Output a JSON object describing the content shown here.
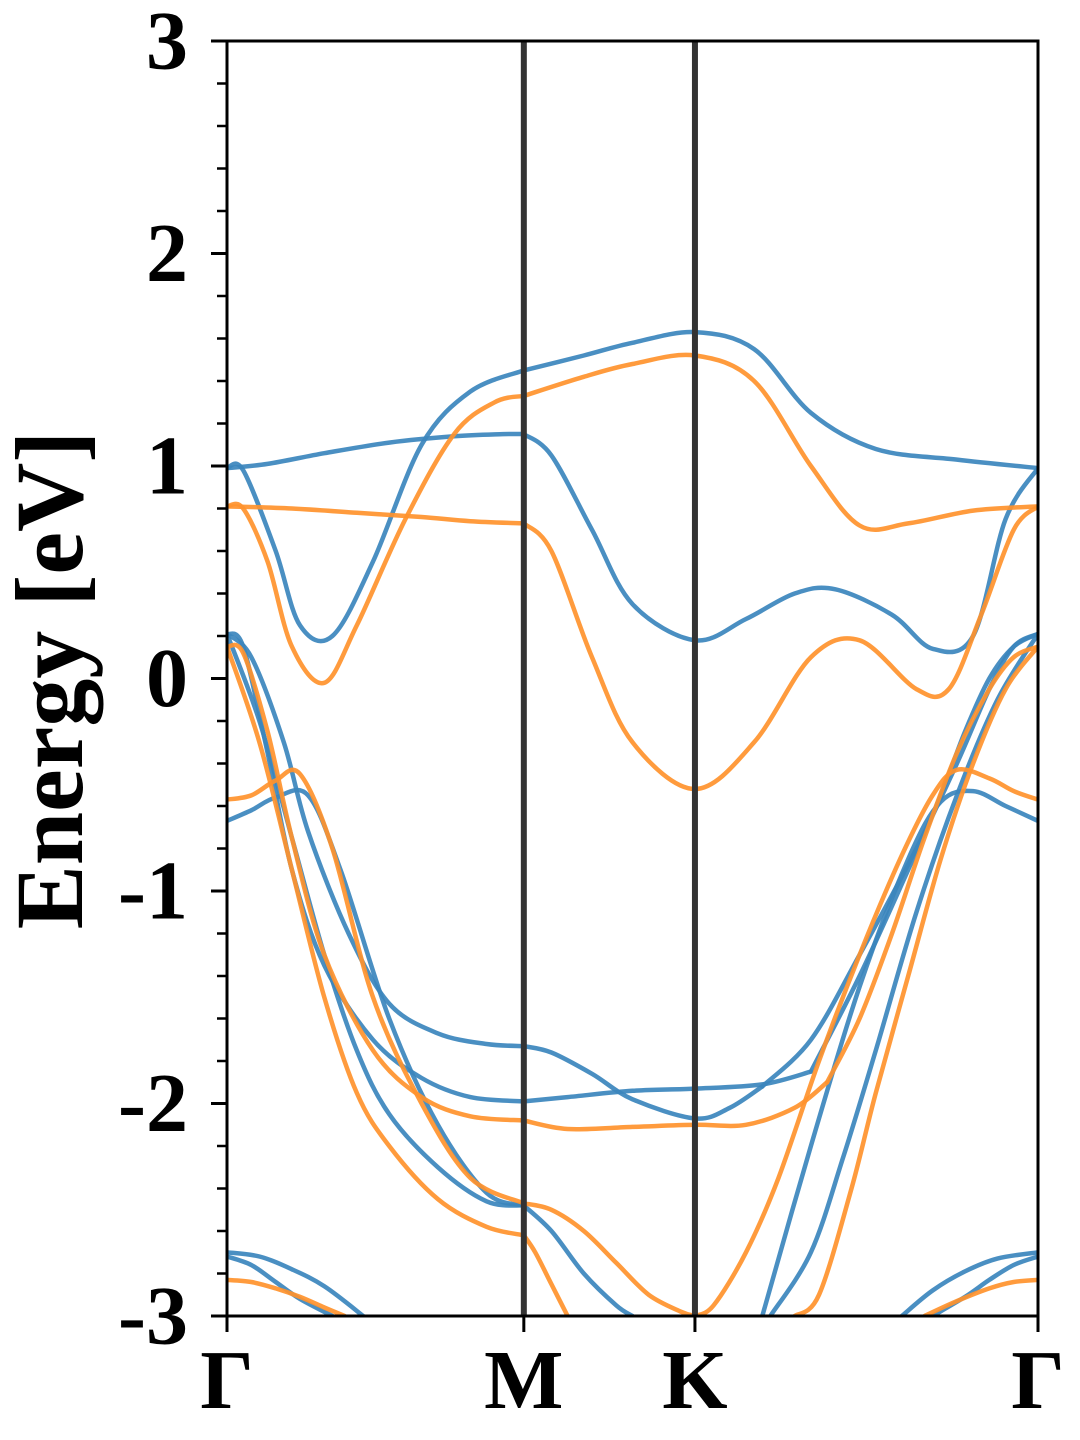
{
  "chart_data": {
    "type": "line",
    "title": "",
    "xlabel": "",
    "ylabel": "Energy [eV]",
    "ylim": [
      -3,
      3
    ],
    "xlim": [
      0,
      1
    ],
    "yticks": [
      {
        "value": 3,
        "label": "3"
      },
      {
        "value": 2,
        "label": "2"
      },
      {
        "value": 1,
        "label": "1"
      },
      {
        "value": 0,
        "label": "0"
      },
      {
        "value": -1,
        "label": "-1"
      },
      {
        "value": -2,
        "label": "-2"
      },
      {
        "value": -3,
        "label": "-3"
      }
    ],
    "kpoints": [
      {
        "label": "Γ",
        "x": 0.0
      },
      {
        "label": "M",
        "x": 0.366
      },
      {
        "label": "K",
        "x": 0.577
      },
      {
        "label": "Γ",
        "x": 1.0
      }
    ],
    "grid": false,
    "legend": "none",
    "colors": {
      "blue": "#3b86bd",
      "orange": "#ff922d",
      "kline": "#333333"
    },
    "series": [
      {
        "color": "blue",
        "x": [
          0,
          0.02,
          0.06,
          0.09,
          0.13,
          0.18,
          0.24,
          0.3,
          0.366
        ],
        "y": [
          0.99,
          0.98,
          0.6,
          0.25,
          0.2,
          0.55,
          1.1,
          1.35,
          1.45
        ]
      },
      {
        "color": "blue",
        "x": [
          0.366,
          0.44,
          0.5,
          0.577,
          0.65,
          0.72,
          0.8,
          0.9,
          1.0
        ],
        "y": [
          1.45,
          1.52,
          1.58,
          1.63,
          1.55,
          1.25,
          1.08,
          1.03,
          0.99
        ]
      },
      {
        "color": "blue",
        "x": [
          0,
          0.05,
          0.12,
          0.2,
          0.28,
          0.34,
          0.366
        ],
        "y": [
          0.99,
          1.01,
          1.06,
          1.11,
          1.14,
          1.15,
          1.15
        ]
      },
      {
        "color": "blue",
        "x": [
          0.366,
          0.4,
          0.45,
          0.5,
          0.577,
          0.64,
          0.7,
          0.75,
          0.82,
          0.87,
          0.92,
          0.96,
          1.0
        ],
        "y": [
          1.15,
          1.05,
          0.7,
          0.35,
          0.18,
          0.28,
          0.4,
          0.42,
          0.3,
          0.14,
          0.2,
          0.75,
          0.99
        ]
      },
      {
        "color": "orange",
        "x": [
          0,
          0.02,
          0.05,
          0.08,
          0.12,
          0.16,
          0.22,
          0.28,
          0.33,
          0.366
        ],
        "y": [
          0.81,
          0.8,
          0.55,
          0.15,
          -0.02,
          0.25,
          0.75,
          1.15,
          1.3,
          1.33
        ]
      },
      {
        "color": "orange",
        "x": [
          0.366,
          0.44,
          0.5,
          0.577,
          0.65,
          0.72,
          0.78,
          0.84,
          0.92,
          1.0
        ],
        "y": [
          1.33,
          1.42,
          1.48,
          1.52,
          1.4,
          1.0,
          0.72,
          0.73,
          0.79,
          0.81
        ]
      },
      {
        "color": "orange",
        "x": [
          0,
          0.08,
          0.16,
          0.24,
          0.3,
          0.366
        ],
        "y": [
          0.81,
          0.8,
          0.78,
          0.76,
          0.74,
          0.73
        ]
      },
      {
        "color": "orange",
        "x": [
          0.366,
          0.4,
          0.45,
          0.5,
          0.577,
          0.65,
          0.72,
          0.78,
          0.85,
          0.89,
          0.93,
          0.97,
          1.0
        ],
        "y": [
          0.73,
          0.6,
          0.1,
          -0.3,
          -0.52,
          -0.3,
          0.1,
          0.18,
          -0.05,
          -0.05,
          0.3,
          0.7,
          0.81
        ]
      },
      {
        "color": "blue",
        "x": [
          0,
          0.02,
          0.05,
          0.08,
          0.12,
          0.18,
          0.24,
          0.3,
          0.366
        ],
        "y": [
          0.21,
          0.15,
          -0.35,
          -0.9,
          -1.35,
          -1.7,
          -1.88,
          -1.97,
          -1.99
        ]
      },
      {
        "color": "blue",
        "x": [
          0.366,
          0.42,
          0.5,
          0.577,
          0.66,
          0.72
        ],
        "y": [
          -1.99,
          -1.97,
          -1.94,
          -1.93,
          -1.91,
          -1.85
        ]
      },
      {
        "color": "blue",
        "x": [
          0.72,
          0.78,
          0.84,
          0.88,
          0.91,
          0.94,
          0.97,
          1.0
        ],
        "y": [
          -1.85,
          -1.4,
          -0.9,
          -0.55,
          -0.25,
          0.0,
          0.15,
          0.21
        ]
      },
      {
        "color": "blue",
        "x": [
          0,
          0.03,
          0.07,
          0.1,
          0.15,
          0.2,
          0.26,
          0.32,
          0.366
        ],
        "y": [
          0.21,
          0.1,
          -0.3,
          -0.72,
          -1.2,
          -1.53,
          -1.67,
          -1.72,
          -1.73
        ]
      },
      {
        "color": "blue",
        "x": [
          0.366,
          0.4,
          0.45,
          0.5,
          0.577,
          0.62,
          0.66
        ],
        "y": [
          -1.73,
          -1.76,
          -1.86,
          -1.98,
          -2.07,
          -2.02,
          -1.92
        ]
      },
      {
        "color": "blue",
        "x": [
          0.66,
          0.72,
          0.78,
          0.85,
          0.9,
          0.94,
          0.97,
          1.0
        ],
        "y": [
          -1.92,
          -1.7,
          -1.3,
          -0.8,
          -0.4,
          -0.05,
          0.15,
          0.21
        ]
      },
      {
        "color": "blue",
        "x": [
          0,
          0.03,
          0.06,
          0.1,
          0.14,
          0.2,
          0.26,
          0.32,
          0.366
        ],
        "y": [
          -0.67,
          -0.62,
          -0.56,
          -0.55,
          -0.9,
          -1.6,
          -2.1,
          -2.42,
          -2.48
        ]
      },
      {
        "color": "blue",
        "x": [
          0.366,
          0.4,
          0.44,
          0.48,
          0.5
        ],
        "y": [
          -2.48,
          -2.6,
          -2.8,
          -2.95,
          -3.0
        ]
      },
      {
        "color": "blue",
        "x": [
          0.66,
          0.72,
          0.78,
          0.84,
          0.88,
          0.92,
          0.96,
          1.0
        ],
        "y": [
          -3.0,
          -2.2,
          -1.45,
          -0.85,
          -0.58,
          -0.53,
          -0.6,
          -0.67
        ]
      },
      {
        "color": "blue",
        "x": [
          0,
          0.04,
          0.08,
          0.12,
          0.16,
          0.2,
          0.26,
          0.32,
          0.366
        ],
        "y": [
          0.21,
          -0.2,
          -0.75,
          -1.3,
          -1.75,
          -2.05,
          -2.3,
          -2.46,
          -2.48
        ]
      },
      {
        "color": "blue",
        "x": [
          0.67,
          0.72,
          0.76,
          0.8,
          0.85,
          0.9,
          0.95,
          1.0
        ],
        "y": [
          -3.0,
          -2.7,
          -2.25,
          -1.75,
          -1.1,
          -0.55,
          -0.1,
          0.21
        ]
      },
      {
        "color": "orange",
        "x": [
          0,
          0.02,
          0.05,
          0.08,
          0.12,
          0.18,
          0.24,
          0.3,
          0.366
        ],
        "y": [
          0.15,
          0.12,
          -0.25,
          -0.75,
          -1.3,
          -1.75,
          -1.97,
          -2.06,
          -2.08
        ]
      },
      {
        "color": "orange",
        "x": [
          0.366,
          0.42,
          0.5,
          0.577,
          0.64,
          0.7,
          0.74
        ],
        "y": [
          -2.08,
          -2.12,
          -2.11,
          -2.1,
          -2.1,
          -2.02,
          -1.9
        ]
      },
      {
        "color": "orange",
        "x": [
          0.74,
          0.78,
          0.82,
          0.86,
          0.9,
          0.94,
          0.97,
          1.0
        ],
        "y": [
          -1.9,
          -1.6,
          -1.2,
          -0.75,
          -0.35,
          -0.05,
          0.1,
          0.15
        ]
      },
      {
        "color": "orange",
        "x": [
          0,
          0.03,
          0.06,
          0.09,
          0.13,
          0.18,
          0.24,
          0.3,
          0.366
        ],
        "y": [
          -0.57,
          -0.55,
          -0.48,
          -0.45,
          -0.8,
          -1.5,
          -2.0,
          -2.35,
          -2.47
        ]
      },
      {
        "color": "orange",
        "x": [
          0.366,
          0.4,
          0.44,
          0.48,
          0.52,
          0.56,
          0.577
        ],
        "y": [
          -2.47,
          -2.5,
          -2.6,
          -2.75,
          -2.9,
          -2.98,
          -3.0
        ]
      },
      {
        "color": "orange",
        "x": [
          0.577,
          0.6,
          0.64,
          0.68,
          0.73,
          0.78,
          0.83,
          0.87,
          0.9,
          0.94,
          0.97,
          1.0
        ],
        "y": [
          -3.0,
          -2.95,
          -2.7,
          -2.35,
          -1.8,
          -1.3,
          -0.85,
          -0.55,
          -0.43,
          -0.47,
          -0.53,
          -0.57
        ]
      },
      {
        "color": "orange",
        "x": [
          0,
          0.04,
          0.08,
          0.12,
          0.16,
          0.2,
          0.26,
          0.32,
          0.366
        ],
        "y": [
          0.15,
          -0.3,
          -0.9,
          -1.5,
          -1.95,
          -2.2,
          -2.45,
          -2.58,
          -2.62
        ]
      },
      {
        "color": "orange",
        "x": [
          0.366,
          0.38,
          0.4,
          0.42
        ],
        "y": [
          -2.62,
          -2.7,
          -2.85,
          -3.0
        ]
      },
      {
        "color": "orange",
        "x": [
          0.7,
          0.73,
          0.77,
          0.8,
          0.84,
          0.88,
          0.92,
          0.96,
          1.0
        ],
        "y": [
          -3.0,
          -2.9,
          -2.4,
          -1.95,
          -1.4,
          -0.85,
          -0.4,
          -0.05,
          0.15
        ]
      },
      {
        "color": "blue",
        "x": [
          0,
          0.04,
          0.08,
          0.12,
          0.168
        ],
        "y": [
          -2.7,
          -2.72,
          -2.78,
          -2.86,
          -3.0
        ]
      },
      {
        "color": "blue",
        "x": [
          0,
          0.03,
          0.06,
          0.09,
          0.13
        ],
        "y": [
          -2.72,
          -2.76,
          -2.84,
          -2.92,
          -3.0
        ]
      },
      {
        "color": "orange",
        "x": [
          0,
          0.03,
          0.06,
          0.09,
          0.12,
          0.145
        ],
        "y": [
          -2.83,
          -2.84,
          -2.87,
          -2.91,
          -2.96,
          -3.0
        ]
      },
      {
        "color": "blue",
        "x": [
          0.832,
          0.87,
          0.91,
          0.95,
          1.0
        ],
        "y": [
          -3.0,
          -2.88,
          -2.79,
          -2.73,
          -2.7
        ]
      },
      {
        "color": "blue",
        "x": [
          0.87,
          0.91,
          0.94,
          0.97,
          1.0
        ],
        "y": [
          -3.0,
          -2.91,
          -2.83,
          -2.76,
          -2.72
        ]
      },
      {
        "color": "orange",
        "x": [
          0.86,
          0.9,
          0.94,
          0.97,
          1.0
        ],
        "y": [
          -3.0,
          -2.93,
          -2.87,
          -2.84,
          -2.83
        ]
      }
    ]
  }
}
